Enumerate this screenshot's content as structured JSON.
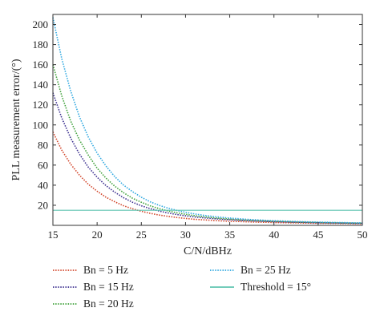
{
  "chart_data": {
    "type": "line",
    "title": "",
    "xlabel": "C/N/dBHz",
    "ylabel": "PLL measurement error/(°)",
    "xlim": [
      15,
      50
    ],
    "ylim": [
      0,
      210
    ],
    "xticks": [
      "15",
      "20",
      "25",
      "30",
      "35",
      "40",
      "45",
      "50"
    ],
    "yticks": [
      "20",
      "40",
      "60",
      "80",
      "100",
      "120",
      "140",
      "160",
      "180",
      "200"
    ],
    "x": [
      15,
      16,
      17,
      18,
      19,
      20,
      21,
      22,
      23,
      24,
      25,
      26,
      27,
      28,
      29,
      30,
      31,
      32,
      33,
      34,
      35,
      36,
      37,
      38,
      39,
      40,
      41,
      42,
      43,
      44,
      45,
      46,
      47,
      48,
      49,
      50
    ],
    "series": [
      {
        "name": "Bn = 5 Hz",
        "color": "#d2452a",
        "style": "dotted",
        "values": [
          93,
          75,
          61,
          50,
          41,
          34,
          28,
          23.5,
          19.5,
          16.5,
          14,
          12,
          10.3,
          9,
          7.8,
          6.9,
          6.1,
          5.5,
          5,
          4.5,
          4.1,
          3.8,
          3.5,
          3.2,
          3,
          2.8,
          2.6,
          2.5,
          2.3,
          2.2,
          2.1,
          2,
          1.9,
          1.8,
          1.7,
          1.6
        ]
      },
      {
        "name": "Bn = 15 Hz",
        "color": "#3b2f8f",
        "style": "dotted",
        "values": [
          132,
          107,
          87,
          71,
          58,
          48,
          39.5,
          33,
          27.5,
          23,
          19.5,
          16.7,
          14.3,
          12.4,
          10.8,
          9.5,
          8.4,
          7.5,
          6.8,
          6.1,
          5.6,
          5.1,
          4.7,
          4.3,
          4,
          3.7,
          3.4,
          3.2,
          3,
          2.8,
          2.6,
          2.5,
          2.3,
          2.2,
          2.1,
          2
        ]
      },
      {
        "name": "Bn = 20 Hz",
        "color": "#3fa13a",
        "style": "dotted",
        "values": [
          160,
          129,
          104,
          85,
          70,
          57,
          47,
          39,
          32.5,
          27,
          23,
          19.5,
          16.7,
          14.4,
          12.5,
          11,
          9.7,
          8.6,
          7.7,
          6.9,
          6.3,
          5.7,
          5.2,
          4.8,
          4.4,
          4.1,
          3.8,
          3.5,
          3.3,
          3.1,
          2.9,
          2.7,
          2.6,
          2.4,
          2.3,
          2.2
        ]
      },
      {
        "name": "Bn = 25 Hz",
        "color": "#2fa8e0",
        "style": "dotted",
        "values": [
          207,
          166,
          134,
          108,
          88,
          72,
          59,
          48.5,
          40,
          33.5,
          28,
          23.5,
          20,
          17.2,
          14.9,
          13,
          11.4,
          10.1,
          9,
          8.1,
          7.3,
          6.6,
          6,
          5.5,
          5,
          4.6,
          4.3,
          4,
          3.7,
          3.4,
          3.2,
          3,
          2.8,
          2.7,
          2.5,
          2.4
        ]
      },
      {
        "name": "Threshold = 15°",
        "color": "#5fc4b0",
        "style": "solid",
        "values": [
          15,
          15,
          15,
          15,
          15,
          15,
          15,
          15,
          15,
          15,
          15,
          15,
          15,
          15,
          15,
          15,
          15,
          15,
          15,
          15,
          15,
          15,
          15,
          15,
          15,
          15,
          15,
          15,
          15,
          15,
          15,
          15,
          15,
          15,
          15,
          15
        ]
      }
    ],
    "legend_position": "bottom",
    "grid": false
  }
}
